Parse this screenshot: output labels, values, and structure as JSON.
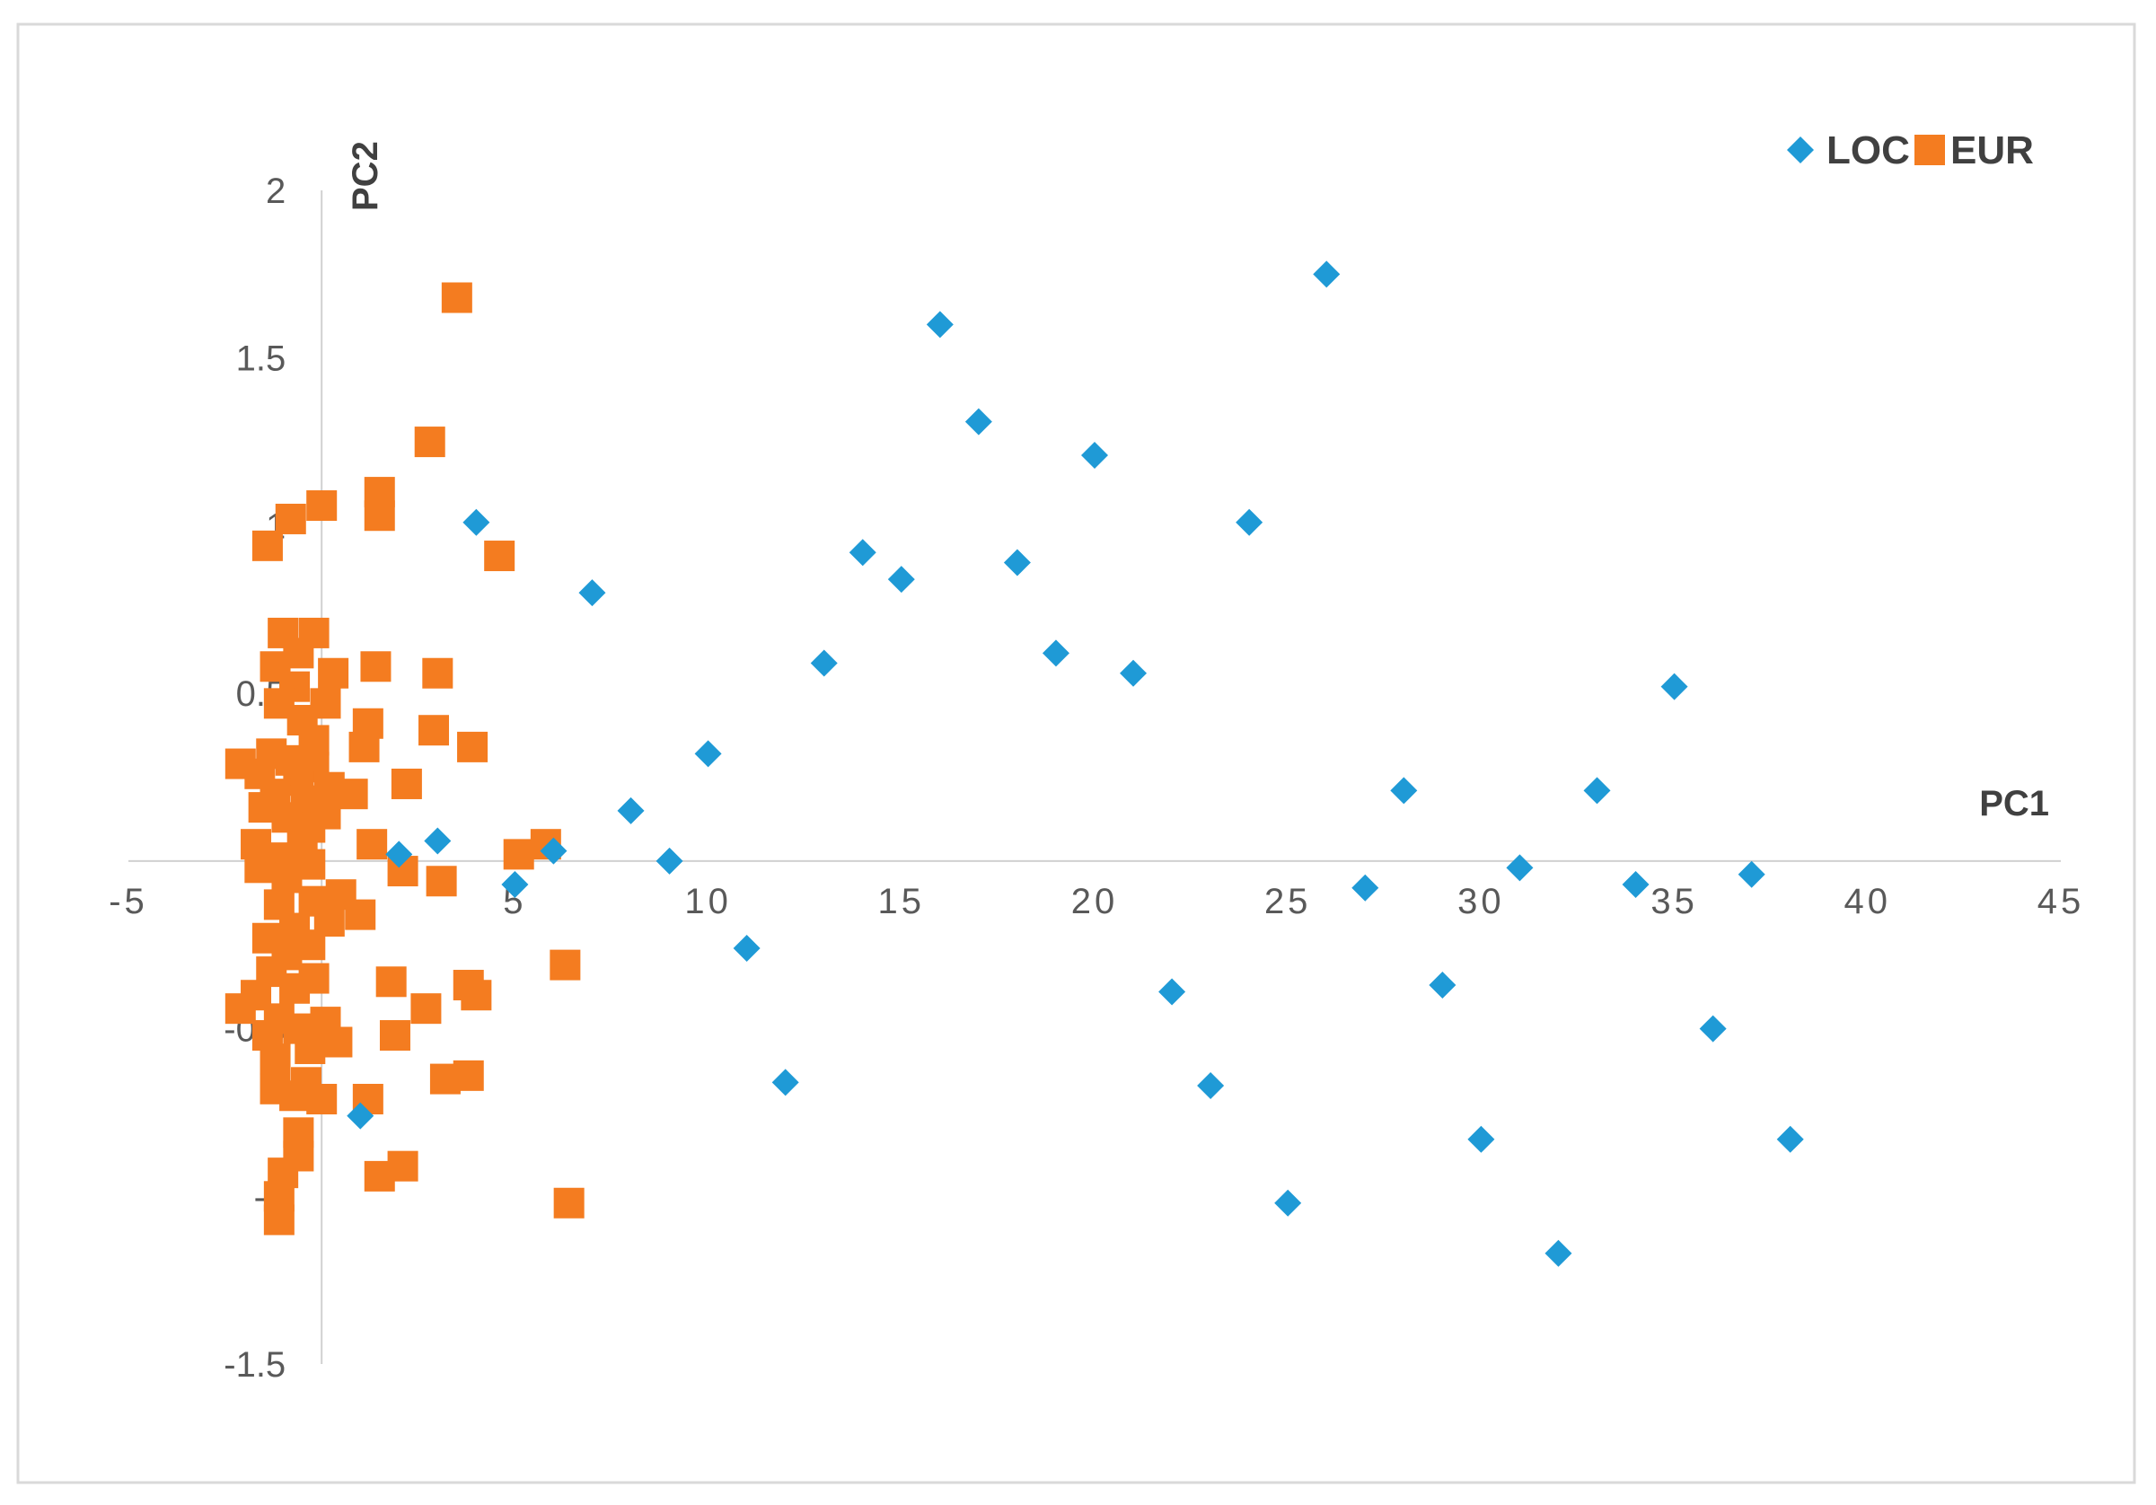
{
  "chart_data": {
    "type": "scatter",
    "xlabel": "PC1",
    "ylabel": "PC2",
    "xlim": [
      -5,
      45
    ],
    "ylim": [
      -1.5,
      2
    ],
    "x_ticks": [
      "-5",
      "0",
      "5",
      "10",
      "15",
      "20",
      "25",
      "30",
      "35",
      "40",
      "45"
    ],
    "y_ticks": [
      "-1.5",
      "-1",
      "-0.5",
      "0",
      "0.5",
      "1",
      "1.5",
      "2"
    ],
    "x_tick_values": [
      -5,
      0,
      5,
      10,
      15,
      20,
      25,
      30,
      35,
      40,
      45
    ],
    "y_tick_values": [
      -1.5,
      -1,
      -0.5,
      0,
      0.5,
      1,
      1.5,
      2
    ],
    "grid": false,
    "legend_position": "top-right",
    "series": [
      {
        "name": "LOC",
        "marker": "diamond",
        "color": "#1f9ad6",
        "points": [
          [
            26,
            1.75
          ],
          [
            16,
            1.6
          ],
          [
            17,
            1.31
          ],
          [
            20,
            1.21
          ],
          [
            24,
            1.01
          ],
          [
            4,
            1.01
          ],
          [
            14,
            0.92
          ],
          [
            18,
            0.89
          ],
          [
            15,
            0.84
          ],
          [
            7,
            0.8
          ],
          [
            19,
            0.62
          ],
          [
            13,
            0.59
          ],
          [
            21,
            0.56
          ],
          [
            35,
            0.52
          ],
          [
            10,
            0.32
          ],
          [
            28,
            0.21
          ],
          [
            33,
            0.21
          ],
          [
            8,
            0.15
          ],
          [
            3,
            0.06
          ],
          [
            2,
            0.02
          ],
          [
            6,
            0.03
          ],
          [
            9,
            0.0
          ],
          [
            31,
            -0.02
          ],
          [
            37,
            -0.04
          ],
          [
            5,
            -0.07
          ],
          [
            27,
            -0.08
          ],
          [
            34,
            -0.07
          ],
          [
            11,
            -0.26
          ],
          [
            29,
            -0.37
          ],
          [
            22,
            -0.39
          ],
          [
            36,
            -0.5
          ],
          [
            12,
            -0.66
          ],
          [
            23,
            -0.67
          ],
          [
            1,
            -0.76
          ],
          [
            30,
            -0.83
          ],
          [
            38,
            -0.83
          ],
          [
            25,
            -1.02
          ],
          [
            32,
            -1.17
          ]
        ]
      },
      {
        "name": "EUR",
        "marker": "square",
        "color": "#f47c20",
        "points": [
          [
            3.5,
            1.68
          ],
          [
            2.8,
            1.25
          ],
          [
            1.5,
            1.1
          ],
          [
            1.5,
            1.03
          ],
          [
            0.0,
            1.06
          ],
          [
            -0.8,
            1.02
          ],
          [
            -1.4,
            0.94
          ],
          [
            4.6,
            0.91
          ],
          [
            -1.0,
            0.68
          ],
          [
            -0.2,
            0.68
          ],
          [
            -0.6,
            0.62
          ],
          [
            -1.2,
            0.58
          ],
          [
            1.4,
            0.58
          ],
          [
            3.0,
            0.56
          ],
          [
            0.3,
            0.56
          ],
          [
            -0.7,
            0.52
          ],
          [
            -1.1,
            0.47
          ],
          [
            0.1,
            0.47
          ],
          [
            -0.5,
            0.42
          ],
          [
            1.2,
            0.41
          ],
          [
            2.9,
            0.39
          ],
          [
            -0.2,
            0.36
          ],
          [
            1.1,
            0.34
          ],
          [
            3.9,
            0.34
          ],
          [
            -1.3,
            0.32
          ],
          [
            -0.8,
            0.3
          ],
          [
            -2.1,
            0.29
          ],
          [
            -0.2,
            0.28
          ],
          [
            -1.6,
            0.26
          ],
          [
            -0.6,
            0.24
          ],
          [
            0.2,
            0.22
          ],
          [
            2.2,
            0.23
          ],
          [
            -1.2,
            0.2
          ],
          [
            0.8,
            0.2
          ],
          [
            -0.4,
            0.18
          ],
          [
            -1.5,
            0.16
          ],
          [
            -0.9,
            0.13
          ],
          [
            0.1,
            0.14
          ],
          [
            -0.3,
            0.1
          ],
          [
            5.8,
            0.05
          ],
          [
            1.3,
            0.05
          ],
          [
            -1.7,
            0.05
          ],
          [
            -0.5,
            0.04
          ],
          [
            5.1,
            0.02
          ],
          [
            -1.2,
            0.01
          ],
          [
            -0.3,
            -0.01
          ],
          [
            -1.6,
            -0.02
          ],
          [
            2.1,
            -0.03
          ],
          [
            3.1,
            -0.06
          ],
          [
            -0.9,
            -0.05
          ],
          [
            0.5,
            -0.1
          ],
          [
            -0.2,
            -0.12
          ],
          [
            -1.1,
            -0.13
          ],
          [
            1.0,
            -0.16
          ],
          [
            0.2,
            -0.18
          ],
          [
            -0.7,
            -0.2
          ],
          [
            -1.4,
            -0.23
          ],
          [
            -0.3,
            -0.25
          ],
          [
            -0.9,
            -0.28
          ],
          [
            6.3,
            -0.31
          ],
          [
            -1.3,
            -0.33
          ],
          [
            -0.2,
            -0.35
          ],
          [
            1.8,
            -0.36
          ],
          [
            3.8,
            -0.37
          ],
          [
            -0.7,
            -0.38
          ],
          [
            4.0,
            -0.4
          ],
          [
            -1.7,
            -0.4
          ],
          [
            -2.1,
            -0.44
          ],
          [
            2.7,
            -0.44
          ],
          [
            -1.1,
            -0.47
          ],
          [
            0.1,
            -0.48
          ],
          [
            -0.6,
            -0.5
          ],
          [
            1.9,
            -0.52
          ],
          [
            -1.4,
            -0.52
          ],
          [
            0.4,
            -0.54
          ],
          [
            -0.3,
            -0.56
          ],
          [
            -1.2,
            -0.59
          ],
          [
            3.2,
            -0.65
          ],
          [
            3.8,
            -0.64
          ],
          [
            -0.4,
            -0.66
          ],
          [
            -1.2,
            -0.68
          ],
          [
            -0.7,
            -0.7
          ],
          [
            0.0,
            -0.71
          ],
          [
            1.2,
            -0.71
          ],
          [
            -0.6,
            -0.81
          ],
          [
            -0.6,
            -0.88
          ],
          [
            2.1,
            -0.91
          ],
          [
            1.5,
            -0.94
          ],
          [
            -1.0,
            -0.93
          ],
          [
            -1.1,
            -1.0
          ],
          [
            6.4,
            -1.02
          ],
          [
            -1.1,
            -1.07
          ]
        ]
      }
    ]
  }
}
